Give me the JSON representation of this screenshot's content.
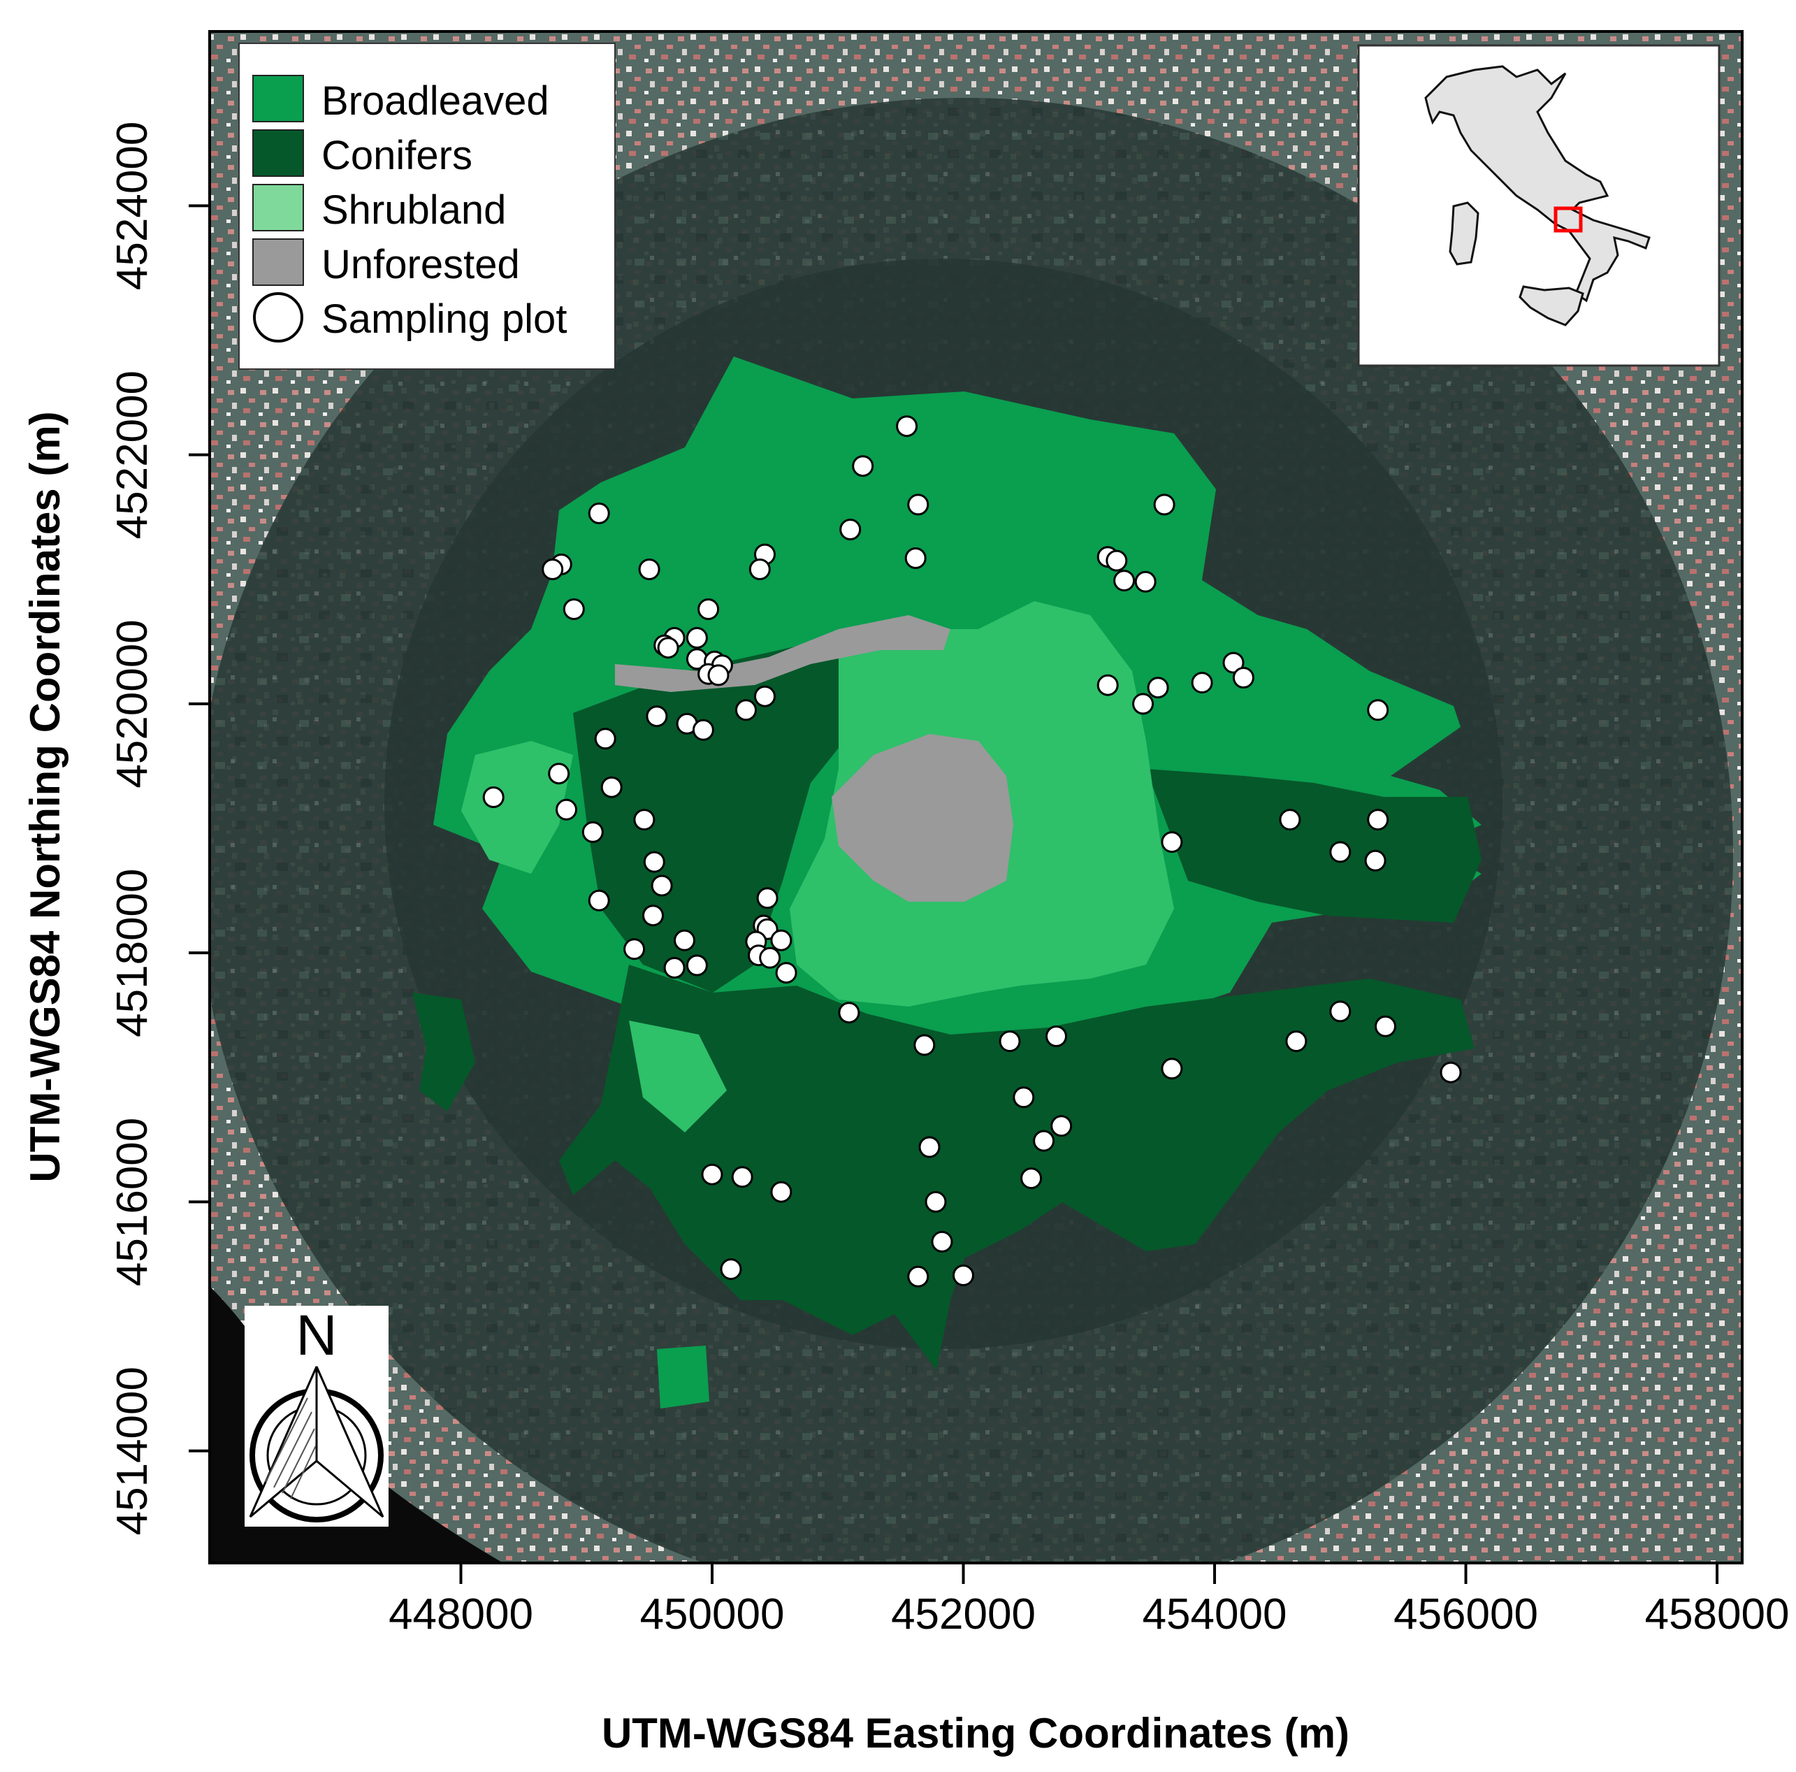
{
  "x_axis": {
    "title": "UTM-WGS84 Easting Coordinates (m)",
    "ticks": [
      "448000",
      "450000",
      "452000",
      "454000",
      "456000",
      "458000"
    ]
  },
  "y_axis": {
    "title": "UTM-WGS84 Northing Coordinates (m)",
    "ticks": [
      "4514000",
      "4516000",
      "4518000",
      "4520000",
      "4522000",
      "4524000"
    ]
  },
  "legend": {
    "placement": "top-left",
    "items": [
      {
        "label": "Broadleaved",
        "color": "#0a9e4f",
        "symbol": "square"
      },
      {
        "label": "Conifers",
        "color": "#05582a",
        "symbol": "square"
      },
      {
        "label": "Shrubland",
        "color": "#7fd99a",
        "symbol": "square"
      },
      {
        "label": "Unforested",
        "color": "#9a9a9a",
        "symbol": "square"
      },
      {
        "label": "Sampling plot",
        "color": "#ffffff",
        "symbol": "circle"
      }
    ]
  },
  "inset": {
    "placement": "top-right",
    "subject": "italy-outline",
    "highlight_color": "#ff0000"
  },
  "north_arrow": {
    "letter": "N",
    "placement": "bottom-left"
  },
  "colors": {
    "broadleaved": "#0a9e4f",
    "conifers": "#05582a",
    "shrubland": "#2fc06a",
    "unforested": "#9a9a9a",
    "satellite_base": "#3a4a46",
    "urban": "#b87a78"
  },
  "chart_data": {
    "type": "scatter",
    "xlim": [
      446000,
      458200
    ],
    "ylim": [
      4513100,
      4525400
    ],
    "series": [
      {
        "name": "Sampling plot",
        "points": [
          [
            451550,
            4522230
          ],
          [
            451200,
            4521910
          ],
          [
            451640,
            4521600
          ],
          [
            453600,
            4521600
          ],
          [
            449100,
            4521530
          ],
          [
            451100,
            4521400
          ],
          [
            450420,
            4521200
          ],
          [
            450380,
            4521080
          ],
          [
            453150,
            4521180
          ],
          [
            453220,
            4521150
          ],
          [
            451620,
            4521170
          ],
          [
            448800,
            4521120
          ],
          [
            448730,
            4521080
          ],
          [
            449500,
            4521080
          ],
          [
            453280,
            4520990
          ],
          [
            453450,
            4520980
          ],
          [
            448900,
            4520760
          ],
          [
            449970,
            4520760
          ],
          [
            449700,
            4520530
          ],
          [
            449880,
            4520530
          ],
          [
            449620,
            4520470
          ],
          [
            449650,
            4520450
          ],
          [
            449880,
            4520360
          ],
          [
            450020,
            4520340
          ],
          [
            450080,
            4520310
          ],
          [
            449970,
            4520240
          ],
          [
            450050,
            4520230
          ],
          [
            454150,
            4520330
          ],
          [
            454230,
            4520210
          ],
          [
            453900,
            4520170
          ],
          [
            453150,
            4520150
          ],
          [
            453550,
            4520130
          ],
          [
            450420,
            4520060
          ],
          [
            450270,
            4519950
          ],
          [
            453430,
            4520000
          ],
          [
            455300,
            4519950
          ],
          [
            449560,
            4519900
          ],
          [
            449800,
            4519840
          ],
          [
            449930,
            4519790
          ],
          [
            449150,
            4519720
          ],
          [
            448780,
            4519440
          ],
          [
            449200,
            4519330
          ],
          [
            448260,
            4519250
          ],
          [
            448840,
            4519150
          ],
          [
            454600,
            4519070
          ],
          [
            455300,
            4519070
          ],
          [
            449460,
            4519070
          ],
          [
            449050,
            4518970
          ],
          [
            453660,
            4518890
          ],
          [
            455000,
            4518810
          ],
          [
            455280,
            4518740
          ],
          [
            449540,
            4518730
          ],
          [
            449600,
            4518540
          ],
          [
            450440,
            4518440
          ],
          [
            449100,
            4518420
          ],
          [
            449530,
            4518300
          ],
          [
            450410,
            4518220
          ],
          [
            450440,
            4518190
          ],
          [
            449380,
            4518030
          ],
          [
            449780,
            4518100
          ],
          [
            450350,
            4518090
          ],
          [
            450370,
            4517980
          ],
          [
            450550,
            4518100
          ],
          [
            450460,
            4517960
          ],
          [
            449700,
            4517880
          ],
          [
            449880,
            4517900
          ],
          [
            450590,
            4517840
          ],
          [
            451090,
            4517520
          ],
          [
            455000,
            4517530
          ],
          [
            455360,
            4517410
          ],
          [
            452740,
            4517330
          ],
          [
            452370,
            4517290
          ],
          [
            451690,
            4517260
          ],
          [
            454650,
            4517290
          ],
          [
            455880,
            4517040
          ],
          [
            453660,
            4517070
          ],
          [
            452480,
            4516840
          ],
          [
            452780,
            4516610
          ],
          [
            452640,
            4516490
          ],
          [
            451730,
            4516440
          ],
          [
            452540,
            4516190
          ],
          [
            450000,
            4516220
          ],
          [
            450240,
            4516200
          ],
          [
            450550,
            4516080
          ],
          [
            451780,
            4516000
          ],
          [
            451830,
            4515680
          ],
          [
            450150,
            4515460
          ],
          [
            451640,
            4515400
          ],
          [
            452000,
            4515410
          ]
        ]
      }
    ]
  }
}
